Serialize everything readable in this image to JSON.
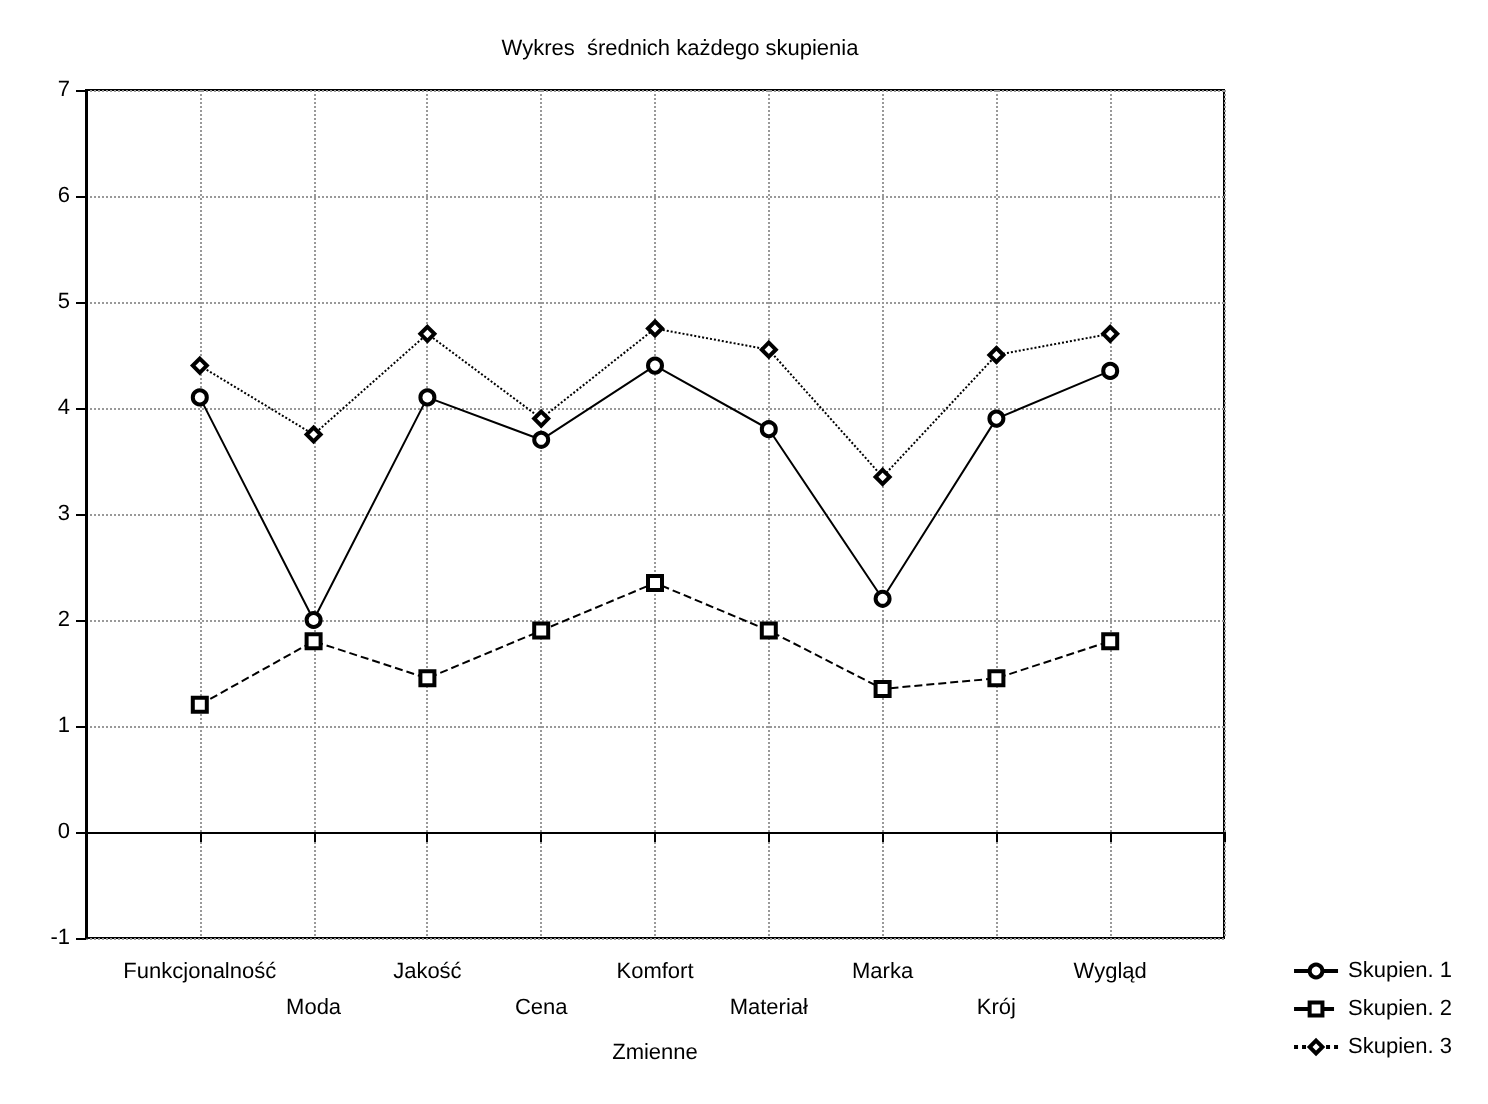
{
  "chart_data": {
    "type": "line",
    "title": "Wykres  średnich każdego skupienia",
    "xlabel": "Zmienne",
    "categories": [
      "Funkcjonalność",
      "Moda",
      "Jakość",
      "Cena",
      "Komfort",
      "Materiał",
      "Marka",
      "Krój",
      "Wygląd"
    ],
    "series": [
      {
        "name": "Skupien. 1",
        "color": "#000000",
        "marker": "circle",
        "line_style": "solid",
        "values": [
          4.1,
          2.0,
          4.1,
          3.7,
          4.4,
          3.8,
          2.2,
          3.9,
          4.35
        ]
      },
      {
        "name": "Skupien. 2",
        "color": "#000000",
        "marker": "square",
        "line_style": "dashed",
        "values": [
          1.2,
          1.8,
          1.45,
          1.9,
          2.35,
          1.9,
          1.35,
          1.45,
          1.8
        ]
      },
      {
        "name": "Skupien. 3",
        "color": "#000000",
        "marker": "diamond",
        "line_style": "dotted",
        "values": [
          4.4,
          3.75,
          4.7,
          3.9,
          4.75,
          4.55,
          3.35,
          4.5,
          4.7
        ]
      }
    ],
    "ylim": [
      -1,
      7
    ],
    "yticks": [
      -1,
      0,
      1,
      2,
      3,
      4,
      5,
      6,
      7
    ],
    "grid": true,
    "legend": "bottom right"
  }
}
